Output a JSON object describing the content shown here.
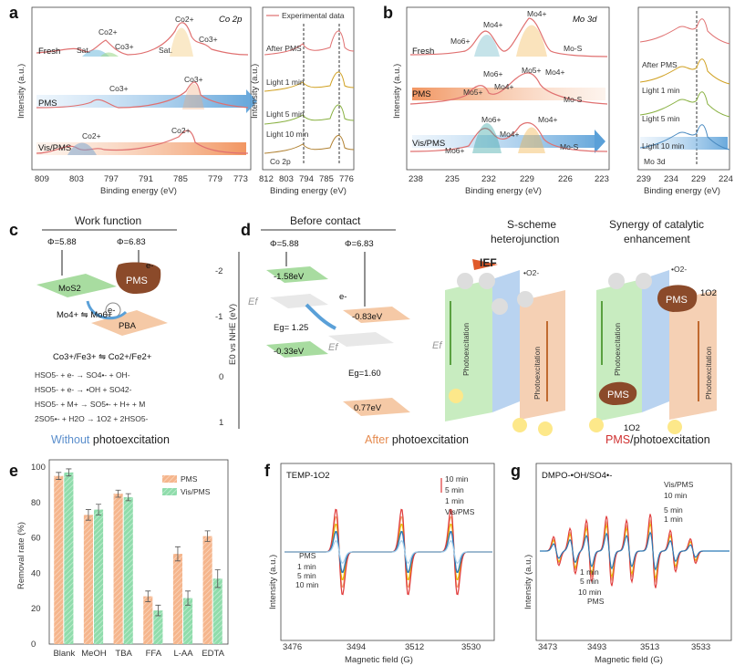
{
  "panels": {
    "a": {
      "label": "a",
      "element": "Co 2p",
      "spectra": [
        "Fresh",
        "PMS",
        "Vis/PMS"
      ],
      "peaks": {
        "fresh": [
          "Sat.",
          "Co2+",
          "Co3+",
          "Co2+",
          "Co3+",
          "Sat."
        ],
        "pms": [
          "Co3+",
          "Co3+"
        ],
        "vis": [
          "Co2+",
          "Co2+"
        ]
      },
      "xlabel": "Binding energy (eV)",
      "ylabel": "Intensity (a.u.)",
      "xticks": [
        "809",
        "803",
        "797",
        "791",
        "785",
        "779",
        "773"
      ],
      "inset": {
        "legend": "Experimental data",
        "traces": [
          "After PMS",
          "Light 1 min",
          "Light 5 min",
          "Light 10 min"
        ],
        "element": "Co 2p",
        "xticks": [
          "812",
          "803",
          "794",
          "785",
          "776"
        ],
        "xlabel": "Binding energy (eV)",
        "ylabel": "Intensity (a.u.)"
      }
    },
    "b": {
      "label": "b",
      "element": "Mo 3d",
      "spectra": [
        "Fresh",
        "PMS",
        "Vis/PMS"
      ],
      "peaks": {
        "mo6": "Mo6+",
        "mo5": "Mo5+",
        "mo4": "Mo4+",
        "mos": "Mo-S"
      },
      "xlabel": "Binding energy (eV)",
      "ylabel": "Intensity (a.u.)",
      "xticks": [
        "238",
        "235",
        "232",
        "229",
        "226",
        "223"
      ],
      "inset": {
        "traces": [
          "After PMS",
          "Light 1 min",
          "Light 5 min",
          "Light 10 min"
        ],
        "element": "Mo 3d",
        "xticks": [
          "239",
          "234",
          "229",
          "224"
        ],
        "xlabel": "Binding energy (eV)"
      }
    },
    "c": {
      "label": "c",
      "title": "Work function",
      "phi1": "Φ=5.88",
      "phi2": "Φ=6.83",
      "mos2": "MoS2",
      "pms": "PMS",
      "pba": "PBA",
      "electron": "e-",
      "mo_redox": "Mo4+ ⇋ Mo6+",
      "co_redox": "Co3+/Fe3+ ⇋ Co2+/Fe2+",
      "reactions": [
        "HSO5- + e- → SO4•- + OH-",
        "HSO5- + e- → •OH + SO42-",
        "HSO5- + M+ → SO5•- + H+ + M",
        "2SO5•- + H2O → 1O2 + 2HSO5-"
      ],
      "caption_colored": "Without",
      "caption_rest": " photoexcitation"
    },
    "d": {
      "label": "d",
      "axis_label": "E0 vs NHE (eV)",
      "yticks": [
        "-2",
        "-1",
        "0",
        "1"
      ],
      "before": {
        "title": "Before contact",
        "phi1": "Φ=5.88",
        "phi2": "Φ=6.83",
        "cb1": "-1.58eV",
        "vb1": "-0.33eV",
        "eg1": "Eg= 1.25",
        "cb2": "-0.83eV",
        "vb2": "0.77eV",
        "eg2": "Eg=1.60",
        "ef": "Ef",
        "e": "e-"
      },
      "scheme": {
        "title1": "S-scheme",
        "title2": "heterojunction",
        "ief": "IEF",
        "photo": "Photoexcitation",
        "o2": "•O2-",
        "ef": "Ef"
      },
      "synergy": {
        "title1": "Synergy of catalytic",
        "title2": "enhancement",
        "photo": "Photoexcitation",
        "pms": "PMS",
        "singlet": "1O2",
        "o2": "•O2-"
      },
      "caption_after_colored": "After",
      "caption_after_rest": " photoexcitation",
      "caption_pms_colored": "PMS",
      "caption_pms_rest": "/photoexcitation"
    },
    "e": {
      "label": "e",
      "chart_data": {
        "type": "bar",
        "categories": [
          "Blank",
          "MeOH",
          "TBA",
          "FFA",
          "L-AA",
          "EDTA"
        ],
        "series": [
          {
            "name": "PMS",
            "values": [
              95,
              73,
              85,
              27,
              51,
              61
            ],
            "errors": [
              2,
              3,
              2,
              3,
              4,
              3
            ],
            "color": "#f0a878"
          },
          {
            "name": "Vis/PMS",
            "values": [
              97,
              76,
              83,
              19,
              26,
              37
            ],
            "errors": [
              2,
              3,
              2,
              3,
              4,
              5
            ],
            "color": "#8ddaa8"
          }
        ],
        "ylabel": "Removal rate (%)",
        "ylim": [
          0,
          100
        ],
        "yticks": [
          "0",
          "20",
          "40",
          "60",
          "80",
          "100"
        ],
        "legend": "top-right"
      }
    },
    "f": {
      "label": "f",
      "probe": "TEMP-1O2",
      "legend_top": [
        "10 min",
        "5 min",
        "1 min",
        "Vis/PMS"
      ],
      "legend_bottom": [
        "PMS",
        "1 min",
        "5 min",
        "10 min"
      ],
      "xlabel": "Magnetic field (G)",
      "ylabel": "Intensity (a.u.)",
      "xticks": [
        "3476",
        "3494",
        "3512",
        "3530"
      ]
    },
    "g": {
      "label": "g",
      "probe": "DMPO-•OH/SO4•-",
      "legend_top": [
        "Vis/PMS",
        "10 min",
        "5 min",
        "1 min"
      ],
      "legend_bottom": [
        "1 min",
        "5 min",
        "10 min",
        "PMS"
      ],
      "xlabel": "Magnetic field (G)",
      "ylabel": "Intensity (a.u.)",
      "xticks": [
        "3473",
        "3493",
        "3513",
        "3533"
      ]
    }
  },
  "colors": {
    "orange": "#e58a4e",
    "green": "#74c97c",
    "blue": "#5aa0d8",
    "red": "#e03a3a",
    "gold": "#e6b800",
    "brown": "#8b4a2a"
  }
}
